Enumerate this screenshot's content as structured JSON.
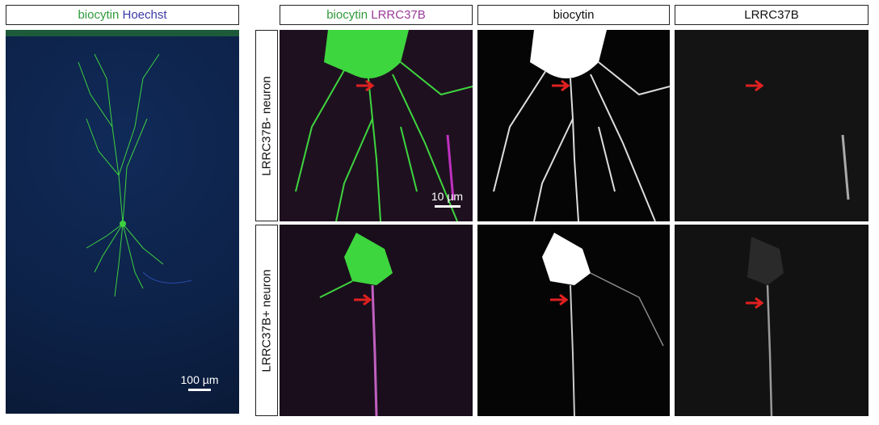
{
  "left_panel": {
    "header": [
      {
        "text": "biocytin",
        "color": "#2e9a3a"
      },
      {
        "text": "Hoechst",
        "color": "#3a3aa8"
      }
    ],
    "scale_bar": "100 µm"
  },
  "columns": [
    {
      "header": [
        {
          "text": "biocytin",
          "color": "#2e9a3a"
        },
        {
          "text": "LRRC37B",
          "color": "#9a3a9a"
        }
      ]
    },
    {
      "header": [
        {
          "text": "biocytin",
          "color": "#111111"
        }
      ]
    },
    {
      "header": [
        {
          "text": "LRRC37B",
          "color": "#111111"
        }
      ]
    }
  ],
  "rows": [
    {
      "label": "LRRC37B- neuron"
    },
    {
      "label": "LRRC37B+ neuron"
    }
  ],
  "inset_scale_bar": "10 µm",
  "colors": {
    "arrow": "#e02020",
    "biocytin": "#39d43a",
    "lrrc37b": "#b030b0",
    "hoechst": "#2040c0"
  }
}
